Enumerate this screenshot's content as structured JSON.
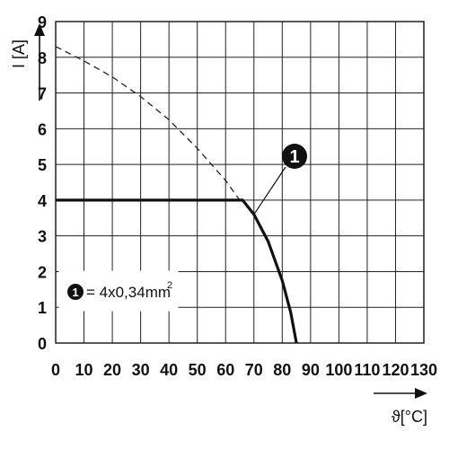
{
  "chart_data": {
    "type": "line",
    "xlabel": "ϑ[°C]",
    "ylabel": "I [A]",
    "xlim": [
      0,
      130
    ],
    "ylim": [
      0,
      9
    ],
    "x_ticks": [
      "0",
      "10",
      "20",
      "30",
      "40",
      "50",
      "60",
      "70",
      "80",
      "90",
      "100",
      "110",
      "120",
      "130"
    ],
    "y_ticks": [
      "0",
      "1",
      "2",
      "3",
      "4",
      "5",
      "6",
      "7",
      "8",
      "9"
    ],
    "grid": true,
    "series": [
      {
        "style": "dashed",
        "color": "#222222",
        "points": [
          [
            0,
            8.3
          ],
          [
            10,
            7.9
          ],
          [
            20,
            7.45
          ],
          [
            30,
            6.9
          ],
          [
            40,
            6.25
          ],
          [
            50,
            5.45
          ],
          [
            60,
            4.55
          ],
          [
            65,
            4.0
          ]
        ]
      },
      {
        "style": "solid-thick",
        "color": "#111111",
        "points": [
          [
            0,
            4.0
          ],
          [
            66,
            4.0
          ],
          [
            70,
            3.6
          ],
          [
            75,
            2.85
          ],
          [
            80,
            1.75
          ],
          [
            83,
            0.85
          ],
          [
            85,
            0.0
          ]
        ]
      }
    ],
    "callout": {
      "label": "1",
      "points_to": [
        70,
        3.6
      ]
    },
    "legend": {
      "marker": "1",
      "text": "= 4x0,34mm",
      "superscript": "2",
      "position": "bottom-left"
    }
  }
}
